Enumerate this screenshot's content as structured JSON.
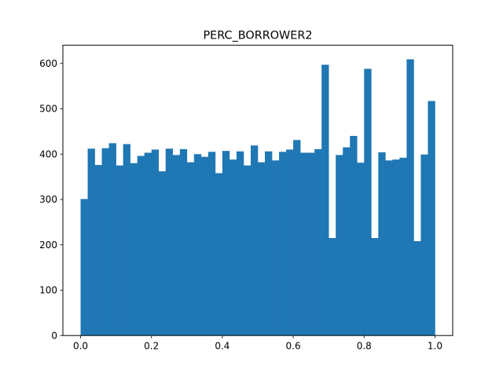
{
  "chart_data": {
    "type": "bar",
    "title": "PERC_BORROWER2",
    "xlabel": "",
    "ylabel": "",
    "color": "#1f77b4",
    "xlim": [
      -0.05,
      1.05
    ],
    "ylim": [
      0,
      640
    ],
    "bin_start": 0.0,
    "bin_end": 1.0,
    "x_ticks": [
      0.0,
      0.2,
      0.4,
      0.6,
      0.8,
      1.0
    ],
    "x_tick_labels": [
      "0.0",
      "0.2",
      "0.4",
      "0.6",
      "0.8",
      "1.0"
    ],
    "y_ticks": [
      0,
      100,
      200,
      300,
      400,
      500,
      600
    ],
    "y_tick_labels": [
      "0",
      "100",
      "200",
      "300",
      "400",
      "500",
      "600"
    ],
    "grid": false,
    "values": [
      301,
      412,
      376,
      413,
      424,
      375,
      422,
      380,
      396,
      403,
      410,
      362,
      412,
      398,
      411,
      382,
      400,
      394,
      405,
      358,
      407,
      388,
      406,
      375,
      419,
      382,
      406,
      386,
      405,
      410,
      431,
      403,
      403,
      411,
      597,
      215,
      398,
      415,
      440,
      381,
      588,
      215,
      404,
      386,
      388,
      392,
      609,
      208,
      399,
      517
    ]
  }
}
